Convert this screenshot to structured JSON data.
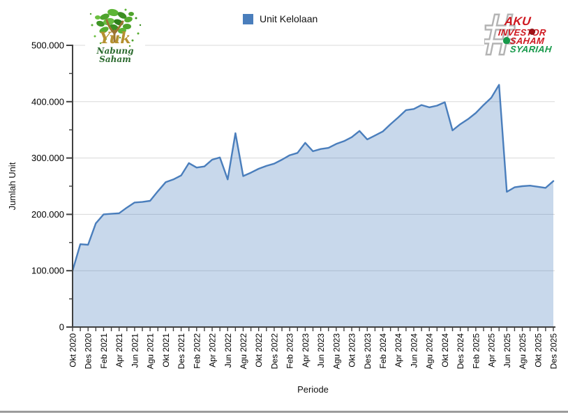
{
  "legend": {
    "label": "Unit Kelolaan",
    "swatch_color": "#4a7ebc"
  },
  "logos": {
    "left": {
      "alt": "Yuk Nabung Saham",
      "word1": "Yuk",
      "word2": "Nabung",
      "word3": "Saham"
    },
    "right": {
      "alt": "#AKU Investor Saham Syariah",
      "hash": "#",
      "line1": "AKU",
      "line2": "INVESTOR",
      "line3": "SAHAM",
      "line4": "SYARIAH",
      "red": "#cf1820",
      "green": "#16994a"
    }
  },
  "chart_data": {
    "type": "area",
    "series_name": "Unit Kelolaan",
    "title": "",
    "xlabel": "Periode",
    "ylabel": "Jumlah Unit",
    "ylim": [
      0,
      500000
    ],
    "y_major_step": 100000,
    "y_minor_step": 50000,
    "y_tick_labels": [
      "0",
      "100.000",
      "200.000",
      "300.000",
      "400.000",
      "500.000"
    ],
    "x_label_every": 2,
    "grid": "horizontal-major",
    "legend_position": "top-center",
    "line_color": "#4a7ebc",
    "fill_color": "rgba(74,126,188,0.3)",
    "axis_color": "#404040",
    "grid_color": "#d8d8d8",
    "categories": [
      "Okt 2020",
      "Nov 2020",
      "Des 2020",
      "Jan 2021",
      "Feb 2021",
      "Mar 2021",
      "Apr 2021",
      "Mei 2021",
      "Jun 2021",
      "Jul 2021",
      "Agu 2021",
      "Sep 2021",
      "Okt 2021",
      "Nov 2021",
      "Des 2021",
      "Jan 2022",
      "Feb 2022",
      "Mar 2022",
      "Apr 2022",
      "Mei 2022",
      "Jun 2022",
      "Jul 2022",
      "Agu 2022",
      "Sep 2022",
      "Okt 2022",
      "Nov 2022",
      "Des 2022",
      "Jan 2023",
      "Feb 2023",
      "Mar 2023",
      "Apr 2023",
      "Mei 2023",
      "Jun 2023",
      "Jul 2023",
      "Agu 2023",
      "Sep 2023",
      "Okt 2023",
      "Nov 2023",
      "Des 2023",
      "Jan 2024",
      "Feb 2024",
      "Mar 2024",
      "Apr 2024",
      "Mei 2024",
      "Jun 2024",
      "Jul 2024",
      "Agu 2024",
      "Sep 2024",
      "Okt 2024",
      "Nov 2024",
      "Des 2024",
      "Jan 2025",
      "Feb 2025",
      "Mar 2025",
      "Apr 2025",
      "Mei 2025",
      "Jun 2025",
      "Jul 2025",
      "Agu 2025",
      "Sep 2025",
      "Okt 2025",
      "Nov 2025",
      "Des 2025"
    ],
    "values": [
      100000,
      147000,
      146000,
      184000,
      200000,
      201000,
      202000,
      212000,
      221000,
      222000,
      224000,
      241000,
      257000,
      262000,
      269000,
      291000,
      283000,
      285000,
      297000,
      301000,
      262000,
      344000,
      268000,
      274000,
      281000,
      286000,
      290000,
      297000,
      305000,
      309000,
      327000,
      312000,
      316000,
      318000,
      325000,
      330000,
      337000,
      348000,
      333000,
      340000,
      347000,
      360000,
      372000,
      385000,
      387000,
      394000,
      390000,
      393000,
      399000,
      349000,
      360000,
      369000,
      380000,
      394000,
      407000,
      430000,
      240000,
      248000,
      250000,
      251000,
      249000,
      247000,
      259000
    ]
  }
}
